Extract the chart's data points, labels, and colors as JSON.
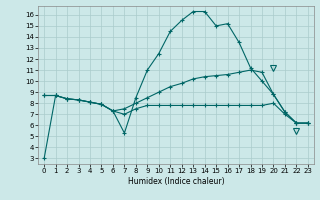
{
  "xlabel": "Humidex (Indice chaleur)",
  "bg_color": "#cce8e8",
  "grid_color": "#aacccc",
  "line_color": "#006666",
  "xlim": [
    -0.5,
    23.5
  ],
  "ylim": [
    2.5,
    16.8
  ],
  "yticks": [
    3,
    4,
    5,
    6,
    7,
    8,
    9,
    10,
    11,
    12,
    13,
    14,
    15,
    16
  ],
  "xticks": [
    0,
    1,
    2,
    3,
    4,
    5,
    6,
    7,
    8,
    9,
    10,
    11,
    12,
    13,
    14,
    15,
    16,
    17,
    18,
    19,
    20,
    21,
    22,
    23
  ],
  "series1_x": [
    0,
    1,
    2,
    3,
    4,
    5,
    6,
    7,
    8,
    9,
    10,
    11,
    12,
    13,
    14,
    15,
    16,
    17,
    18,
    19,
    20,
    21,
    22,
    23
  ],
  "series1_y": [
    3.0,
    8.7,
    8.4,
    8.3,
    8.1,
    7.9,
    7.3,
    5.3,
    8.5,
    11.0,
    12.5,
    14.5,
    15.5,
    16.3,
    16.3,
    15.0,
    15.2,
    13.5,
    11.2,
    10.0,
    8.8,
    7.2,
    6.2,
    6.2
  ],
  "series2_x": [
    0,
    1,
    2,
    3,
    4,
    5,
    6,
    7,
    8,
    9,
    10,
    11,
    12,
    13,
    14,
    15,
    16,
    17,
    18,
    19,
    20,
    21,
    22,
    23
  ],
  "series2_y": [
    8.7,
    8.7,
    8.4,
    8.3,
    8.1,
    7.9,
    7.3,
    7.5,
    8.0,
    8.5,
    9.0,
    9.5,
    9.8,
    10.2,
    10.4,
    10.5,
    10.6,
    10.8,
    11.0,
    10.8,
    8.8,
    7.2,
    6.2,
    6.2
  ],
  "series3_x": [
    0,
    1,
    2,
    3,
    4,
    5,
    6,
    7,
    8,
    9,
    10,
    11,
    12,
    13,
    14,
    15,
    16,
    17,
    18,
    19,
    20,
    21,
    22,
    23
  ],
  "series3_y": [
    8.7,
    8.7,
    8.4,
    8.3,
    8.1,
    7.9,
    7.3,
    7.0,
    7.5,
    7.8,
    7.8,
    7.8,
    7.8,
    7.8,
    7.8,
    7.8,
    7.8,
    7.8,
    7.8,
    7.8,
    8.0,
    7.0,
    6.2,
    6.2
  ],
  "tri1_x": 20,
  "tri1_y": 11.2,
  "tri2_x": 22,
  "tri2_y": 5.5
}
